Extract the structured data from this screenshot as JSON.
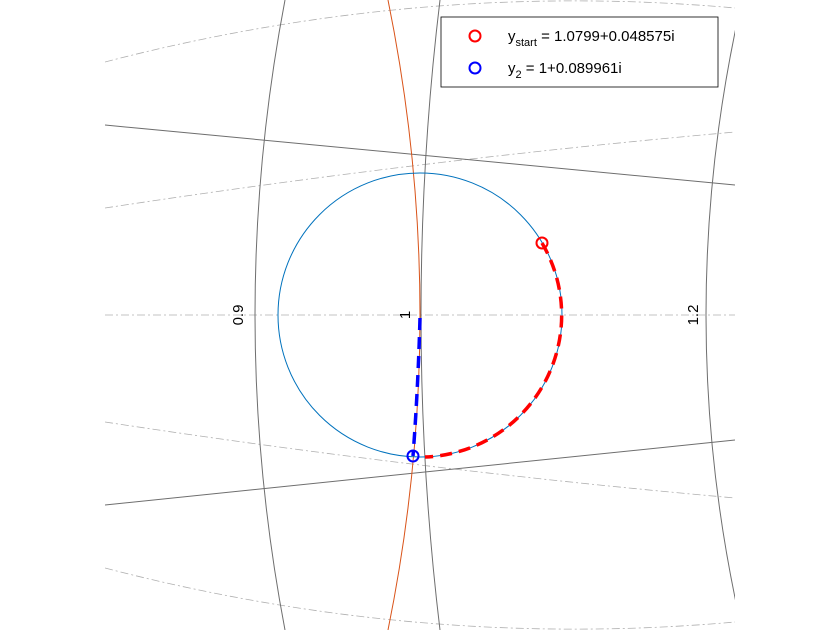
{
  "chart_data": {
    "type": "smith",
    "gticks": [
      0.9,
      1,
      1.2
    ],
    "legend": [
      {
        "symbol": "y",
        "subscript": "start",
        "text": " = 1.0799+0.048575i",
        "color": "#ff0000"
      },
      {
        "symbol": "y",
        "subscript": "2",
        "text": " = 1+0.089961i",
        "color": "#0000ff"
      }
    ]
  }
}
